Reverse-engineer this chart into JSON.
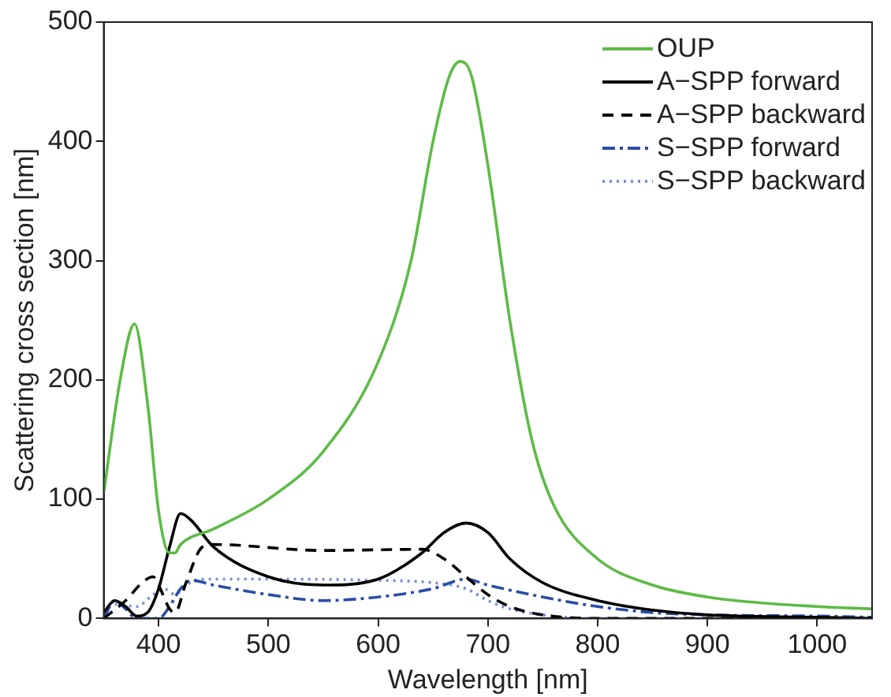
{
  "chart_data": {
    "type": "line",
    "xlabel": "Wavelength [nm]",
    "ylabel": "Scattering cross section [nm]",
    "xlim": [
      350,
      1050
    ],
    "xticks": [
      400,
      500,
      600,
      700,
      800,
      900,
      1000
    ],
    "ylim": [
      0,
      500
    ],
    "yticks": [
      0,
      100,
      200,
      300,
      400,
      500
    ],
    "grid": false,
    "legend": "top right",
    "marker": "none",
    "series": [
      {
        "name": "OUP",
        "color": "#5dbb46",
        "line_style": "solid",
        "x": [
          350,
          365,
          378,
          390,
          400,
          410,
          415,
          420,
          450,
          500,
          550,
          600,
          630,
          650,
          665,
          675,
          685,
          700,
          720,
          740,
          760,
          800,
          850,
          900,
          950,
          1000,
          1050
        ],
        "values": [
          105,
          200,
          247,
          180,
          90,
          55,
          55,
          62,
          75,
          100,
          140,
          215,
          300,
          400,
          455,
          467,
          455,
          380,
          250,
          150,
          95,
          50,
          28,
          18,
          13,
          10,
          8
        ]
      },
      {
        "name": "A−SPP forward",
        "color": "#000000",
        "line_style": "solid",
        "x": [
          350,
          360,
          370,
          380,
          390,
          400,
          410,
          420,
          430,
          450,
          500,
          550,
          600,
          640,
          660,
          680,
          700,
          720,
          750,
          800,
          850,
          900,
          1000,
          1050
        ],
        "values": [
          5,
          15,
          10,
          2,
          5,
          25,
          60,
          88,
          82,
          60,
          35,
          28,
          33,
          55,
          72,
          80,
          72,
          50,
          30,
          15,
          7,
          3,
          1,
          0
        ]
      },
      {
        "name": "A−SPP backward",
        "color": "#000000",
        "line_style": "dashed",
        "x": [
          350,
          370,
          385,
          395,
          400,
          410,
          415,
          425,
          440,
          450,
          550,
          640,
          660,
          680,
          700,
          720,
          750,
          800,
          1050
        ],
        "values": [
          0,
          15,
          30,
          35,
          28,
          8,
          5,
          30,
          60,
          62,
          57,
          58,
          50,
          35,
          20,
          10,
          3,
          0,
          0
        ]
      },
      {
        "name": "S−SPP forward",
        "color": "#2b4da8",
        "line_style": "dashdot",
        "x": [
          350,
          360,
          370,
          380,
          400,
          410,
          420,
          430,
          450,
          500,
          550,
          600,
          650,
          680,
          700,
          750,
          800,
          850,
          900,
          1000,
          1050
        ],
        "values": [
          0,
          15,
          8,
          0,
          0,
          10,
          25,
          32,
          28,
          20,
          15,
          18,
          25,
          33,
          28,
          18,
          10,
          5,
          3,
          2,
          1
        ]
      },
      {
        "name": "S−SPP backward",
        "color": "#7a8fd8",
        "line_style": "dotted",
        "x": [
          350,
          360,
          380,
          395,
          405,
          415,
          425,
          440,
          500,
          600,
          650,
          680,
          700,
          720,
          750,
          800,
          1050
        ],
        "values": [
          5,
          12,
          10,
          20,
          25,
          20,
          28,
          33,
          33,
          32,
          30,
          25,
          15,
          8,
          3,
          0,
          0
        ]
      }
    ]
  }
}
